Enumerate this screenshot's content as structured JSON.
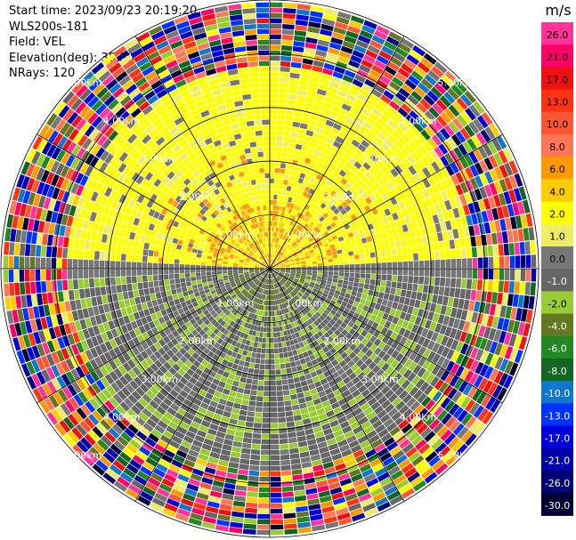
{
  "header": {
    "start_time": "Start time: 2023/09/23 20:19:20",
    "instrument": "WLS200s-181",
    "field": "Field: VEL",
    "elevation": "Elevation(deg): 35.30",
    "nrays": "NRays: 120"
  },
  "chart_data": {
    "type": "heatmap",
    "projection": "polar PPI",
    "title": "",
    "range_rings_labels": [
      "1.00km",
      "2.00km",
      "3.00km",
      "4.00km",
      "5.00km"
    ],
    "range_rings_km": [
      1,
      2,
      3,
      4,
      5
    ],
    "max_range_km": 5,
    "azimuth_spokes_deg": [
      0,
      30,
      60,
      90,
      120,
      150,
      180,
      210,
      240,
      270,
      300,
      330
    ],
    "n_rays": 120,
    "colorbar": {
      "unit": "m/s",
      "tick_labels": [
        "26.0",
        "21.0",
        "17.0",
        "13.0",
        "10.0",
        "8.0",
        "6.0",
        "4.0",
        "2.0",
        "1.0",
        "0.0",
        "-1.0",
        "-2.0",
        "-4.0",
        "-6.0",
        "-8.0",
        "-10.0",
        "-13.0",
        "-17.0",
        "-21.0",
        "-26.0",
        "-30.0"
      ],
      "colors": [
        "#ff3399",
        "#ff0066",
        "#ee1111",
        "#ff3311",
        "#ff5533",
        "#ff7755",
        "#ff9900",
        "#ffcc00",
        "#ffff00",
        "#eeee66",
        "#777777",
        "#666666",
        "#99cc33",
        "#667722",
        "#228822",
        "#116622",
        "#1177cc",
        "#0033ff",
        "#0000dd",
        "#0000aa",
        "#000077",
        "#000033"
      ]
    },
    "pattern_summary": {
      "north_half_dominant_m_s": [
        1.0,
        6.0
      ],
      "south_half_dominant_m_s": [
        -4.0,
        -1.0
      ],
      "center_patches_m_s": [
        6.0,
        -6.0
      ],
      "noise_beyond_km": 3.7
    }
  }
}
